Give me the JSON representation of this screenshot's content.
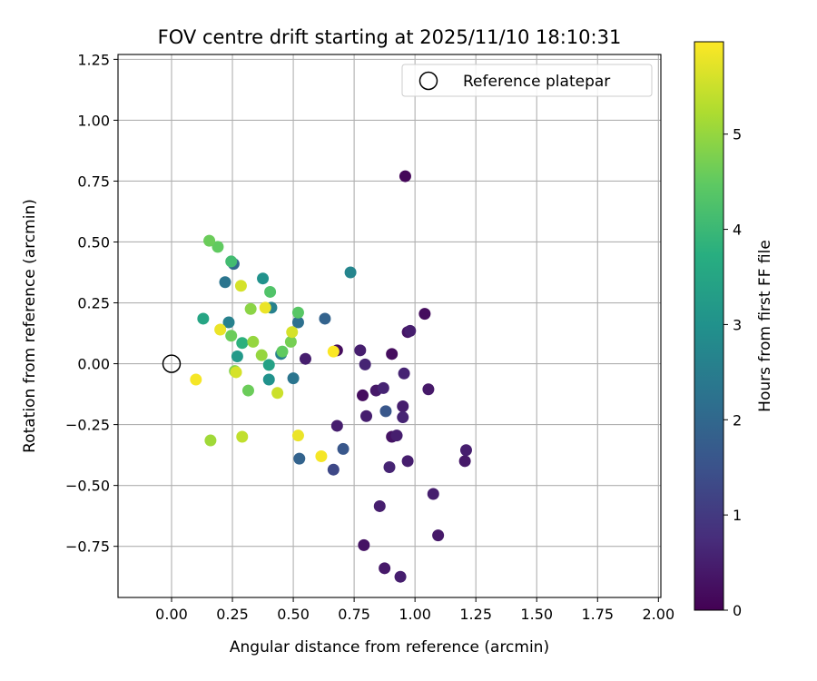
{
  "chart_data": {
    "type": "scatter",
    "title": "FOV centre drift starting at 2025/11/10 18:10:31",
    "xlabel": "Angular distance from reference (arcmin)",
    "ylabel": "Rotation from reference (arcmin)",
    "xlim": [
      -0.22,
      2.01
    ],
    "ylim": [
      -0.96,
      1.27
    ],
    "xticks": [
      0.0,
      0.25,
      0.5,
      0.75,
      1.0,
      1.25,
      1.5,
      1.75,
      2.0
    ],
    "xtick_labels": [
      "0.00",
      "0.25",
      "0.50",
      "0.75",
      "1.00",
      "1.25",
      "1.50",
      "1.75",
      "2.00"
    ],
    "yticks": [
      -0.75,
      -0.5,
      -0.25,
      0.0,
      0.25,
      0.5,
      0.75,
      1.0,
      1.25
    ],
    "ytick_labels": [
      "−0.75",
      "−0.50",
      "−0.25",
      "0.00",
      "0.25",
      "0.50",
      "0.75",
      "1.00",
      "1.25"
    ],
    "grid": true,
    "legend": {
      "location": "upper-right",
      "entries": [
        {
          "label": "Reference platepar",
          "marker": "open-circle"
        }
      ]
    },
    "reference_point": {
      "x": 0.0,
      "y": 0.0
    },
    "colorbar": {
      "label": "Hours from first FF file",
      "colormap": "viridis",
      "range": [
        0,
        5.97
      ],
      "ticks": [
        0,
        1,
        2,
        3,
        4,
        5
      ],
      "tick_labels": [
        "0",
        "1",
        "2",
        "3",
        "4",
        "5"
      ]
    },
    "points": [
      {
        "x": 0.96,
        "y": 0.77,
        "hours": 0.1
      },
      {
        "x": 1.04,
        "y": 0.205,
        "hours": 0.2
      },
      {
        "x": 0.97,
        "y": 0.13,
        "hours": 0.3
      },
      {
        "x": 0.98,
        "y": 0.135,
        "hours": 0.5
      },
      {
        "x": 0.68,
        "y": 0.055,
        "hours": 0.2
      },
      {
        "x": 0.775,
        "y": 0.055,
        "hours": 0.5
      },
      {
        "x": 0.905,
        "y": 0.04,
        "hours": 0.2
      },
      {
        "x": 0.795,
        "y": -0.003,
        "hours": 0.6
      },
      {
        "x": 0.955,
        "y": -0.04,
        "hours": 0.6
      },
      {
        "x": 0.55,
        "y": 0.02,
        "hours": 0.5
      },
      {
        "x": 1.055,
        "y": -0.105,
        "hours": 0.4
      },
      {
        "x": 0.87,
        "y": -0.1,
        "hours": 0.6
      },
      {
        "x": 0.84,
        "y": -0.11,
        "hours": 0.4
      },
      {
        "x": 0.785,
        "y": -0.13,
        "hours": 0.2
      },
      {
        "x": 0.95,
        "y": -0.175,
        "hours": 0.5
      },
      {
        "x": 0.8,
        "y": -0.215,
        "hours": 0.5
      },
      {
        "x": 0.95,
        "y": -0.22,
        "hours": 0.6
      },
      {
        "x": 0.68,
        "y": -0.255,
        "hours": 0.5
      },
      {
        "x": 0.905,
        "y": -0.3,
        "hours": 0.3
      },
      {
        "x": 0.925,
        "y": -0.295,
        "hours": 0.5
      },
      {
        "x": 1.21,
        "y": -0.355,
        "hours": 0.5
      },
      {
        "x": 1.205,
        "y": -0.4,
        "hours": 0.4
      },
      {
        "x": 0.97,
        "y": -0.4,
        "hours": 0.5
      },
      {
        "x": 0.895,
        "y": -0.425,
        "hours": 0.6
      },
      {
        "x": 1.075,
        "y": -0.535,
        "hours": 0.5
      },
      {
        "x": 0.855,
        "y": -0.585,
        "hours": 0.5
      },
      {
        "x": 1.095,
        "y": -0.705,
        "hours": 0.4
      },
      {
        "x": 0.79,
        "y": -0.745,
        "hours": 0.3
      },
      {
        "x": 0.875,
        "y": -0.84,
        "hours": 0.4
      },
      {
        "x": 0.94,
        "y": -0.875,
        "hours": 0.5
      },
      {
        "x": 0.88,
        "y": -0.195,
        "hours": 1.6
      },
      {
        "x": 0.705,
        "y": -0.35,
        "hours": 1.6
      },
      {
        "x": 0.665,
        "y": -0.435,
        "hours": 1.3
      },
      {
        "x": 0.525,
        "y": -0.39,
        "hours": 1.9
      },
      {
        "x": 0.63,
        "y": 0.185,
        "hours": 1.9
      },
      {
        "x": 0.52,
        "y": 0.17,
        "hours": 2.2
      },
      {
        "x": 0.5,
        "y": -0.06,
        "hours": 2.3
      },
      {
        "x": 0.255,
        "y": 0.41,
        "hours": 2.0
      },
      {
        "x": 0.22,
        "y": 0.335,
        "hours": 2.3
      },
      {
        "x": 0.735,
        "y": 0.375,
        "hours": 2.7
      },
      {
        "x": 0.41,
        "y": 0.23,
        "hours": 2.6
      },
      {
        "x": 0.45,
        "y": 0.04,
        "hours": 2.6
      },
      {
        "x": 0.235,
        "y": 0.17,
        "hours": 2.6
      },
      {
        "x": 0.375,
        "y": 0.35,
        "hours": 3.0
      },
      {
        "x": 0.4,
        "y": -0.065,
        "hours": 3.0
      },
      {
        "x": 0.27,
        "y": 0.03,
        "hours": 3.2
      },
      {
        "x": 0.4,
        "y": -0.005,
        "hours": 3.4
      },
      {
        "x": 0.13,
        "y": 0.185,
        "hours": 3.5
      },
      {
        "x": 0.29,
        "y": 0.085,
        "hours": 3.8
      },
      {
        "x": 0.245,
        "y": 0.42,
        "hours": 4.1
      },
      {
        "x": 0.405,
        "y": 0.295,
        "hours": 4.3
      },
      {
        "x": 0.52,
        "y": 0.21,
        "hours": 4.4
      },
      {
        "x": 0.19,
        "y": 0.48,
        "hours": 4.5
      },
      {
        "x": 0.155,
        "y": 0.505,
        "hours": 4.6
      },
      {
        "x": 0.455,
        "y": 0.05,
        "hours": 4.5
      },
      {
        "x": 0.315,
        "y": -0.11,
        "hours": 4.6
      },
      {
        "x": 0.245,
        "y": 0.115,
        "hours": 4.6
      },
      {
        "x": 0.49,
        "y": 0.09,
        "hours": 4.7
      },
      {
        "x": 0.26,
        "y": -0.03,
        "hours": 4.8
      },
      {
        "x": 0.325,
        "y": 0.225,
        "hours": 4.9
      },
      {
        "x": 0.37,
        "y": 0.035,
        "hours": 5.0
      },
      {
        "x": 0.335,
        "y": 0.09,
        "hours": 5.0
      },
      {
        "x": 0.16,
        "y": -0.315,
        "hours": 5.1
      },
      {
        "x": 0.29,
        "y": -0.3,
        "hours": 5.4
      },
      {
        "x": 0.435,
        "y": -0.12,
        "hours": 5.5
      },
      {
        "x": 0.265,
        "y": -0.035,
        "hours": 5.6
      },
      {
        "x": 0.495,
        "y": 0.13,
        "hours": 5.6
      },
      {
        "x": 0.285,
        "y": 0.32,
        "hours": 5.6
      },
      {
        "x": 0.52,
        "y": -0.295,
        "hours": 5.8
      },
      {
        "x": 0.385,
        "y": 0.23,
        "hours": 5.8
      },
      {
        "x": 0.2,
        "y": 0.14,
        "hours": 5.8
      },
      {
        "x": 0.1,
        "y": -0.065,
        "hours": 5.9
      },
      {
        "x": 0.615,
        "y": -0.38,
        "hours": 5.9
      },
      {
        "x": 0.665,
        "y": 0.05,
        "hours": 5.95
      }
    ]
  }
}
